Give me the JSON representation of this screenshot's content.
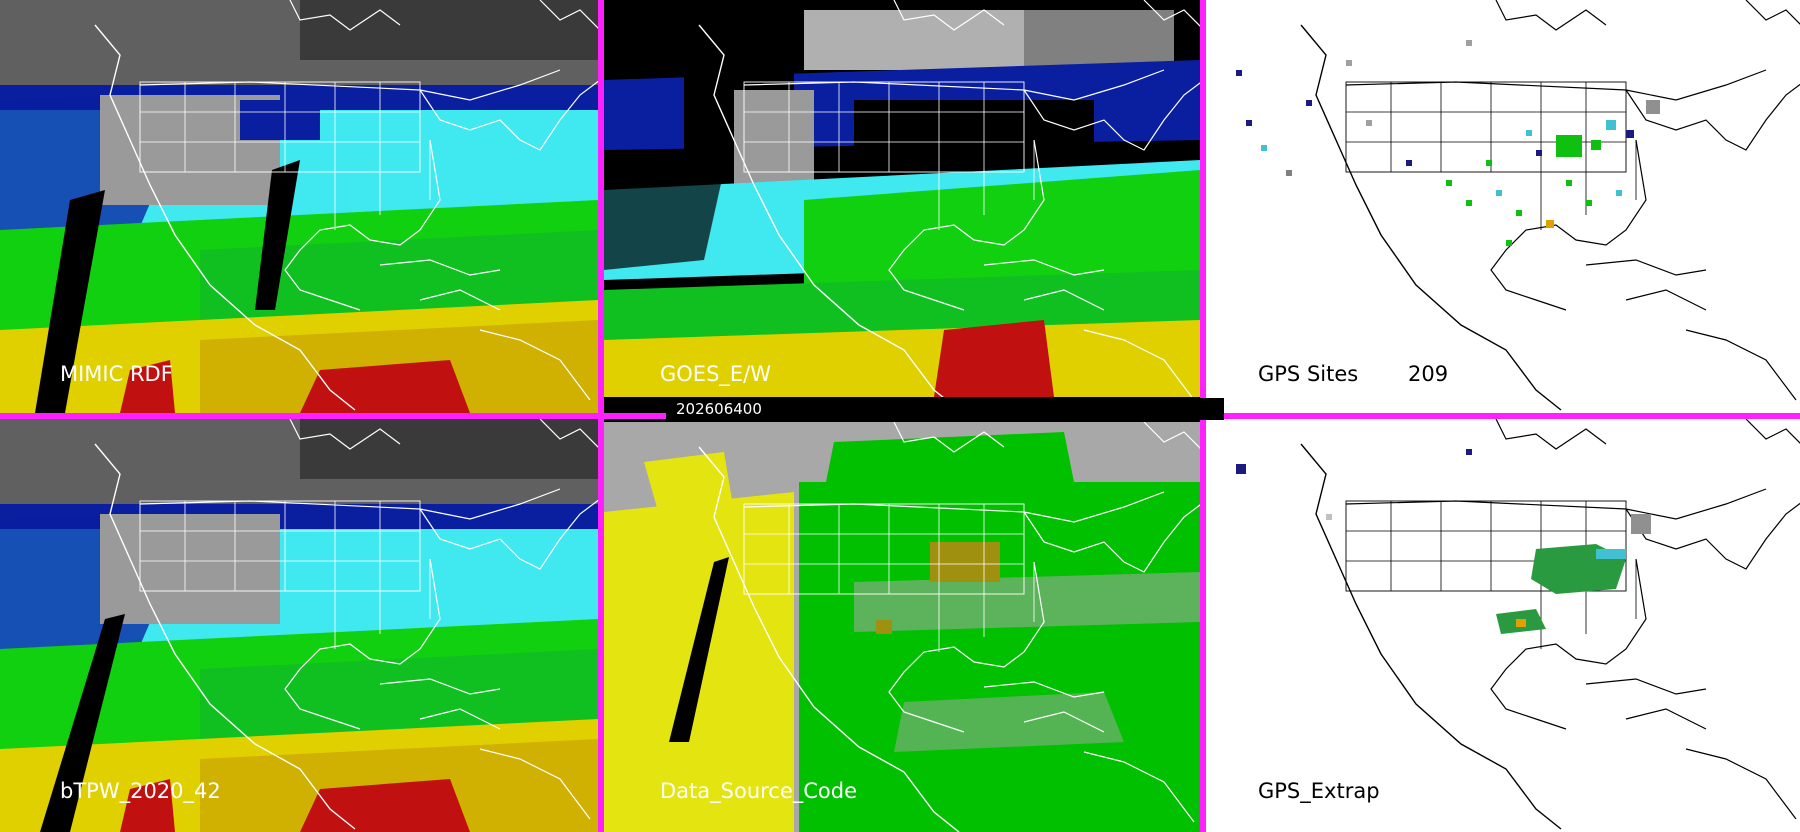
{
  "panels": [
    {
      "id": "mimic-rdf",
      "label": "MIMIC RDF"
    },
    {
      "id": "goes-ew",
      "label": "GOES_E/W"
    },
    {
      "id": "gps-sites",
      "label": "GPS Sites",
      "count": "209"
    },
    {
      "id": "btpw",
      "label": "bTPW_2020_42"
    },
    {
      "id": "data-source-code",
      "label": "Data_Source_Code"
    },
    {
      "id": "gps-extrap",
      "label": "GPS_Extrap"
    }
  ],
  "timestamp": "202606400",
  "colors": {
    "divider": "#ff20ff",
    "tpw_dry": "#808080",
    "tpw_blue": "#0a1ea0",
    "tpw_cyan": "#40e8f0",
    "tpw_green": "#10d010",
    "tpw_yellow": "#e0d000",
    "tpw_red": "#c01010",
    "source_gray": "#a8a8a8",
    "source_yellow": "#e4e410",
    "source_green": "#00c000",
    "source_olive": "#a09010"
  }
}
